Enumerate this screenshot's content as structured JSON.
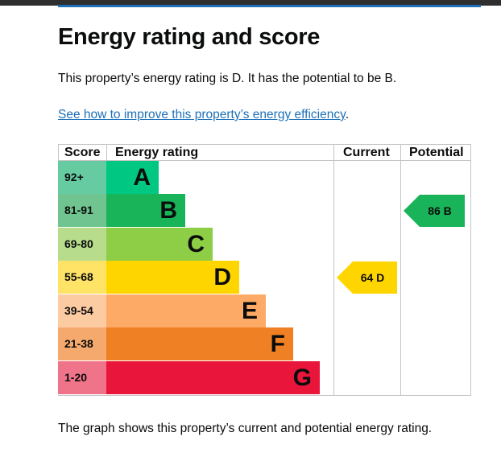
{
  "page": {
    "title": "Energy rating and score",
    "summary": "This property’s energy rating is D. It has the potential to be B.",
    "improve_link": "See how to improve this property’s energy efficiency",
    "improve_link_suffix": ".",
    "footer_note": "The graph shows this property’s current and potential energy rating."
  },
  "chart": {
    "headers": {
      "score": "Score",
      "rating": "Energy rating",
      "current": "Current",
      "potential": "Potential"
    },
    "bands": [
      {
        "score": "92+",
        "letter": "A",
        "color": "#00c781",
        "score_bg": "#67cba2"
      },
      {
        "score": "81-91",
        "letter": "B",
        "color": "#19b459",
        "score_bg": "#6fc48f"
      },
      {
        "score": "69-80",
        "letter": "C",
        "color": "#8dce46",
        "score_bg": "#b7dd8c"
      },
      {
        "score": "55-68",
        "letter": "D",
        "color": "#ffd500",
        "score_bg": "#ffe366"
      },
      {
        "score": "39-54",
        "letter": "E",
        "color": "#fcaa65",
        "score_bg": "#fdcba2"
      },
      {
        "score": "21-38",
        "letter": "F",
        "color": "#ef8023",
        "score_bg": "#f5a96c"
      },
      {
        "score": "1-20",
        "letter": "G",
        "color": "#e9153b",
        "score_bg": "#f07489"
      }
    ],
    "current": {
      "text": "64 D",
      "score": 64,
      "band": "D",
      "color": "#ffd500"
    },
    "potential": {
      "text": "86 B",
      "score": 86,
      "band": "B",
      "color": "#19b459"
    }
  }
}
